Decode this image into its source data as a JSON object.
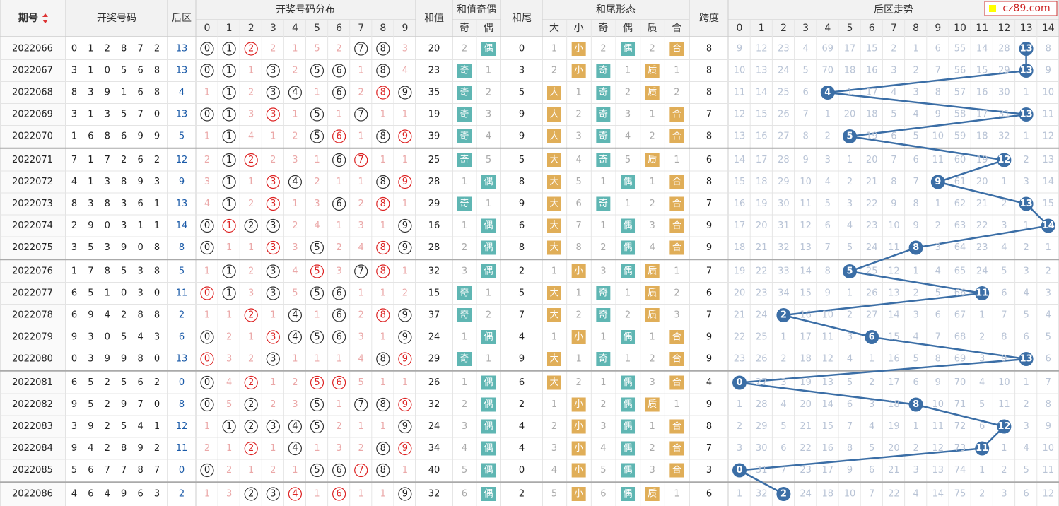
{
  "header": {
    "period": "期号",
    "numbers": "开奖号码",
    "back": "后区",
    "dist": "开奖号码分布",
    "dist_cols": [
      0,
      1,
      2,
      3,
      4,
      5,
      6,
      7,
      8,
      9
    ],
    "sum": "和值",
    "sum_parity": "和值奇偶",
    "sum_parity_cols": [
      "奇",
      "偶"
    ],
    "tail": "和尾",
    "tail_form": "和尾形态",
    "tail_form_cols": [
      "大",
      "小",
      "奇",
      "偶",
      "质",
      "合"
    ],
    "span": "跨度",
    "trend": "后区走势",
    "trend_cols": [
      0,
      1,
      2,
      3,
      4,
      5,
      6,
      7,
      8,
      9,
      10,
      11,
      12,
      13,
      14
    ]
  },
  "watermark": "cz89.com",
  "rows": [
    {
      "period": "2022066",
      "numbers": [
        0,
        1,
        2,
        8,
        7,
        2
      ],
      "back": 13,
      "dist": [
        0,
        1,
        2,
        2,
        1,
        5,
        2,
        7,
        8,
        3
      ],
      "sum": 20,
      "parity": [
        2,
        "偶"
      ],
      "tail": 0,
      "form": [
        1,
        "小",
        2,
        "偶",
        2,
        "合"
      ],
      "span": 8,
      "trend": [
        9,
        12,
        23,
        4,
        69,
        17,
        15,
        2,
        1,
        6,
        55,
        14,
        28,
        13,
        8
      ]
    },
    {
      "period": "2022067",
      "numbers": [
        3,
        1,
        0,
        5,
        6,
        8
      ],
      "back": 13,
      "dist": [
        0,
        1,
        1,
        3,
        2,
        5,
        6,
        1,
        8,
        4
      ],
      "sum": 23,
      "parity": [
        "奇",
        1
      ],
      "tail": 3,
      "form": [
        2,
        "小",
        "奇",
        1,
        "质",
        1
      ],
      "span": 8,
      "trend": [
        10,
        13,
        24,
        5,
        70,
        18,
        16,
        3,
        2,
        7,
        56,
        15,
        29,
        13,
        9
      ]
    },
    {
      "period": "2022068",
      "numbers": [
        8,
        3,
        9,
        1,
        6,
        8
      ],
      "back": 4,
      "dist": [
        1,
        1,
        2,
        3,
        4,
        1,
        6,
        2,
        8,
        9
      ],
      "sum": 35,
      "parity": [
        "奇",
        2
      ],
      "tail": 5,
      "form": [
        "大",
        1,
        "奇",
        2,
        "质",
        2
      ],
      "span": 8,
      "trend": [
        11,
        14,
        25,
        6,
        4,
        1,
        17,
        4,
        3,
        8,
        57,
        16,
        30,
        1,
        10
      ]
    },
    {
      "period": "2022069",
      "numbers": [
        3,
        1,
        3,
        5,
        7,
        0
      ],
      "back": 13,
      "dist": [
        0,
        1,
        3,
        3,
        1,
        5,
        1,
        7,
        1,
        1
      ],
      "sum": 19,
      "parity": [
        "奇",
        3
      ],
      "tail": 9,
      "form": [
        "大",
        2,
        "奇",
        3,
        1,
        "合"
      ],
      "span": 7,
      "trend": [
        12,
        15,
        26,
        7,
        1,
        20,
        18,
        5,
        4,
        9,
        58,
        17,
        31,
        13,
        11
      ]
    },
    {
      "period": "2022070",
      "numbers": [
        1,
        6,
        8,
        6,
        9,
        9
      ],
      "back": 5,
      "dist": [
        1,
        1,
        4,
        1,
        2,
        5,
        6,
        1,
        8,
        9
      ],
      "sum": 39,
      "parity": [
        "奇",
        4
      ],
      "tail": 9,
      "form": [
        "大",
        3,
        "奇",
        4,
        2,
        "合"
      ],
      "span": 8,
      "trend": [
        13,
        16,
        27,
        8,
        2,
        5,
        19,
        6,
        5,
        10,
        59,
        18,
        32,
        1,
        12
      ]
    },
    {
      "period": "2022071",
      "numbers": [
        7,
        1,
        7,
        2,
        6,
        2
      ],
      "back": 12,
      "dist": [
        2,
        1,
        2,
        2,
        3,
        1,
        6,
        7,
        1,
        1
      ],
      "sum": 25,
      "parity": [
        "奇",
        5
      ],
      "tail": 5,
      "form": [
        "大",
        4,
        "奇",
        5,
        "质",
        1
      ],
      "span": 6,
      "trend": [
        14,
        17,
        28,
        9,
        3,
        1,
        20,
        7,
        6,
        11,
        60,
        19,
        12,
        2,
        13
      ]
    },
    {
      "period": "2022072",
      "numbers": [
        4,
        1,
        3,
        8,
        9,
        3
      ],
      "back": 9,
      "dist": [
        3,
        1,
        1,
        3,
        4,
        2,
        1,
        1,
        8,
        9
      ],
      "sum": 28,
      "parity": [
        1,
        "偶"
      ],
      "tail": 8,
      "form": [
        "大",
        5,
        1,
        "偶",
        1,
        "合"
      ],
      "span": 8,
      "trend": [
        15,
        18,
        29,
        10,
        4,
        2,
        21,
        8,
        7,
        9,
        61,
        20,
        1,
        3,
        14
      ]
    },
    {
      "period": "2022073",
      "numbers": [
        8,
        3,
        8,
        3,
        6,
        1
      ],
      "back": 13,
      "dist": [
        4,
        1,
        2,
        3,
        1,
        3,
        6,
        2,
        8,
        1
      ],
      "sum": 29,
      "parity": [
        "奇",
        1
      ],
      "tail": 9,
      "form": [
        "大",
        6,
        "奇",
        1,
        2,
        "合"
      ],
      "span": 7,
      "trend": [
        16,
        19,
        30,
        11,
        5,
        3,
        22,
        9,
        8,
        1,
        62,
        21,
        2,
        13,
        15
      ]
    },
    {
      "period": "2022074",
      "numbers": [
        2,
        9,
        0,
        3,
        1,
        1
      ],
      "back": 14,
      "dist": [
        0,
        1,
        2,
        3,
        2,
        4,
        1,
        3,
        1,
        9
      ],
      "sum": 16,
      "parity": [
        1,
        "偶"
      ],
      "tail": 6,
      "form": [
        "大",
        7,
        1,
        "偶",
        3,
        "合"
      ],
      "span": 9,
      "trend": [
        17,
        20,
        31,
        12,
        6,
        4,
        23,
        10,
        9,
        2,
        63,
        22,
        3,
        1,
        14
      ]
    },
    {
      "period": "2022075",
      "numbers": [
        3,
        5,
        3,
        9,
        0,
        8
      ],
      "back": 8,
      "dist": [
        0,
        1,
        1,
        3,
        3,
        5,
        2,
        4,
        8,
        9
      ],
      "sum": 28,
      "parity": [
        2,
        "偶"
      ],
      "tail": 8,
      "form": [
        "大",
        8,
        2,
        "偶",
        4,
        "合"
      ],
      "span": 9,
      "trend": [
        18,
        21,
        32,
        13,
        7,
        5,
        24,
        11,
        8,
        3,
        64,
        23,
        4,
        2,
        1
      ]
    },
    {
      "period": "2022076",
      "numbers": [
        1,
        7,
        8,
        5,
        3,
        8
      ],
      "back": 5,
      "dist": [
        1,
        1,
        2,
        3,
        4,
        5,
        3,
        7,
        8,
        1
      ],
      "sum": 32,
      "parity": [
        3,
        "偶"
      ],
      "tail": 2,
      "form": [
        1,
        "小",
        3,
        "偶",
        "质",
        1
      ],
      "span": 7,
      "trend": [
        19,
        22,
        33,
        14,
        8,
        5,
        25,
        12,
        1,
        4,
        65,
        24,
        5,
        3,
        2
      ]
    },
    {
      "period": "2022077",
      "numbers": [
        6,
        5,
        1,
        0,
        3,
        0
      ],
      "back": 11,
      "dist": [
        0,
        1,
        3,
        3,
        5,
        5,
        6,
        1,
        1,
        2
      ],
      "sum": 15,
      "parity": [
        "奇",
        1
      ],
      "tail": 5,
      "form": [
        "大",
        1,
        "奇",
        1,
        "质",
        2
      ],
      "span": 6,
      "trend": [
        20,
        23,
        34,
        15,
        9,
        1,
        26,
        13,
        2,
        5,
        66,
        11,
        6,
        4,
        3
      ]
    },
    {
      "period": "2022078",
      "numbers": [
        6,
        9,
        4,
        2,
        8,
        8
      ],
      "back": 2,
      "dist": [
        1,
        1,
        2,
        1,
        4,
        1,
        6,
        2,
        8,
        9
      ],
      "sum": 37,
      "parity": [
        "奇",
        2
      ],
      "tail": 7,
      "form": [
        "大",
        2,
        "奇",
        2,
        "质",
        3
      ],
      "span": 7,
      "trend": [
        21,
        24,
        2,
        16,
        10,
        2,
        27,
        14,
        3,
        6,
        67,
        1,
        7,
        5,
        4
      ]
    },
    {
      "period": "2022079",
      "numbers": [
        9,
        3,
        0,
        5,
        4,
        3
      ],
      "back": 6,
      "dist": [
        0,
        2,
        1,
        3,
        4,
        5,
        6,
        3,
        1,
        9
      ],
      "sum": 24,
      "parity": [
        1,
        "偶"
      ],
      "tail": 4,
      "form": [
        1,
        "小",
        1,
        "偶",
        1,
        "合"
      ],
      "span": 9,
      "trend": [
        22,
        25,
        1,
        17,
        11,
        3,
        6,
        15,
        4,
        7,
        68,
        2,
        8,
        6,
        5
      ]
    },
    {
      "period": "2022080",
      "numbers": [
        0,
        3,
        9,
        9,
        8,
        0
      ],
      "back": 13,
      "dist": [
        0,
        3,
        2,
        3,
        1,
        1,
        1,
        4,
        8,
        9
      ],
      "sum": 29,
      "parity": [
        "奇",
        1
      ],
      "tail": 9,
      "form": [
        "大",
        1,
        "奇",
        1,
        2,
        "合"
      ],
      "span": 9,
      "trend": [
        23,
        26,
        2,
        18,
        12,
        4,
        1,
        16,
        5,
        8,
        69,
        3,
        9,
        13,
        6
      ]
    },
    {
      "period": "2022081",
      "numbers": [
        6,
        5,
        2,
        5,
        6,
        2
      ],
      "back": 0,
      "dist": [
        0,
        4,
        2,
        1,
        2,
        5,
        6,
        5,
        1,
        1
      ],
      "sum": 26,
      "parity": [
        1,
        "偶"
      ],
      "tail": 6,
      "form": [
        "大",
        2,
        1,
        "偶",
        3,
        "合"
      ],
      "span": 4,
      "trend": [
        0,
        27,
        3,
        19,
        13,
        5,
        2,
        17,
        6,
        9,
        70,
        4,
        10,
        1,
        7
      ]
    },
    {
      "period": "2022082",
      "numbers": [
        9,
        5,
        2,
        9,
        7,
        0
      ],
      "back": 8,
      "dist": [
        0,
        5,
        2,
        2,
        3,
        5,
        1,
        7,
        8,
        9
      ],
      "sum": 32,
      "parity": [
        2,
        "偶"
      ],
      "tail": 2,
      "form": [
        1,
        "小",
        2,
        "偶",
        "质",
        1
      ],
      "span": 9,
      "trend": [
        1,
        28,
        4,
        20,
        14,
        6,
        3,
        18,
        8,
        10,
        71,
        5,
        11,
        2,
        8
      ]
    },
    {
      "period": "2022083",
      "numbers": [
        3,
        9,
        2,
        5,
        4,
        1
      ],
      "back": 12,
      "dist": [
        1,
        1,
        2,
        3,
        4,
        5,
        2,
        1,
        1,
        9
      ],
      "sum": 24,
      "parity": [
        3,
        "偶"
      ],
      "tail": 4,
      "form": [
        2,
        "小",
        3,
        "偶",
        1,
        "合"
      ],
      "span": 8,
      "trend": [
        2,
        29,
        5,
        21,
        15,
        7,
        4,
        19,
        1,
        11,
        72,
        6,
        12,
        3,
        9
      ]
    },
    {
      "period": "2022084",
      "numbers": [
        9,
        4,
        2,
        8,
        9,
        2
      ],
      "back": 11,
      "dist": [
        2,
        1,
        2,
        1,
        4,
        1,
        3,
        2,
        8,
        9
      ],
      "sum": 34,
      "parity": [
        4,
        "偶"
      ],
      "tail": 4,
      "form": [
        3,
        "小",
        4,
        "偶",
        2,
        "合"
      ],
      "span": 7,
      "trend": [
        3,
        30,
        6,
        22,
        16,
        8,
        5,
        20,
        2,
        12,
        73,
        11,
        1,
        4,
        10
      ]
    },
    {
      "period": "2022085",
      "numbers": [
        5,
        6,
        7,
        7,
        8,
        7
      ],
      "back": 0,
      "dist": [
        0,
        2,
        1,
        2,
        1,
        5,
        6,
        7,
        8,
        1
      ],
      "sum": 40,
      "parity": [
        5,
        "偶"
      ],
      "tail": 0,
      "form": [
        4,
        "小",
        5,
        "偶",
        3,
        "合"
      ],
      "span": 3,
      "trend": [
        0,
        31,
        7,
        23,
        17,
        9,
        6,
        21,
        3,
        13,
        74,
        1,
        2,
        5,
        11
      ]
    },
    {
      "period": "2022086",
      "numbers": [
        4,
        6,
        4,
        9,
        6,
        3
      ],
      "back": 2,
      "dist": [
        1,
        3,
        2,
        3,
        4,
        1,
        6,
        1,
        1,
        9
      ],
      "sum": 32,
      "parity": [
        6,
        "偶"
      ],
      "tail": 2,
      "form": [
        5,
        "小",
        6,
        "偶",
        "质",
        1
      ],
      "span": 6,
      "trend": [
        1,
        32,
        2,
        24,
        18,
        10,
        7,
        22,
        4,
        14,
        75,
        2,
        3,
        6,
        12
      ]
    }
  ]
}
